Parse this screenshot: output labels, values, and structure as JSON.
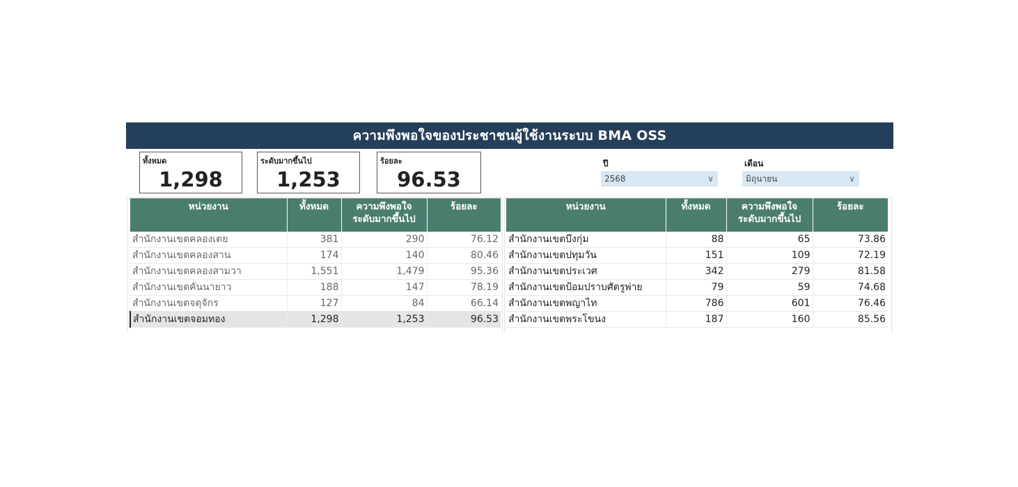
{
  "title": "ความพึงพอใจของประชาชนผู้ใช้งานระบบ BMA OSS",
  "kpis": {
    "total": {
      "label": "ทั้งหมด",
      "value": "1,298"
    },
    "high": {
      "label": "ระดับมากขึ้นไป",
      "value": "1,253"
    },
    "percent": {
      "label": "ร้อยละ",
      "value": "96.53"
    }
  },
  "filters": {
    "year": {
      "label": "ปี",
      "value": "2568"
    },
    "month": {
      "label": "เดือน",
      "value": "มิถุนายน"
    }
  },
  "table_headers": {
    "unit": "หน่วยงาน",
    "total": "ทั้งหมด",
    "high_line1": "ความพึงพอใจ",
    "high_line2": "ระดับมากขึ้นไป",
    "percent": "ร้อยละ"
  },
  "left_table": [
    {
      "unit": "สำนักงานเขตคลองเตย",
      "total": "381",
      "high": "290",
      "percent": "76.12"
    },
    {
      "unit": "สำนักงานเขตคลองสาน",
      "total": "174",
      "high": "140",
      "percent": "80.46"
    },
    {
      "unit": "สำนักงานเขตคลองสามวา",
      "total": "1,551",
      "high": "1,479",
      "percent": "95.36"
    },
    {
      "unit": "สำนักงานเขตคันนายาว",
      "total": "188",
      "high": "147",
      "percent": "78.19"
    },
    {
      "unit": "สำนักงานเขตจตุจักร",
      "total": "127",
      "high": "84",
      "percent": "66.14"
    },
    {
      "unit": "สำนักงานเขตจอมทอง",
      "total": "1,298",
      "high": "1,253",
      "percent": "96.53"
    }
  ],
  "right_table": [
    {
      "unit": "สำนักงานเขตบึงกุ่ม",
      "total": "88",
      "high": "65",
      "percent": "73.86"
    },
    {
      "unit": "สำนักงานเขตปทุมวัน",
      "total": "151",
      "high": "109",
      "percent": "72.19"
    },
    {
      "unit": "สำนักงานเขตประเวศ",
      "total": "342",
      "high": "279",
      "percent": "81.58"
    },
    {
      "unit": "สำนักงานเขตป้อมปราบศัตรูพ่าย",
      "total": "79",
      "high": "59",
      "percent": "74.68"
    },
    {
      "unit": "สำนักงานเขตพญาไท",
      "total": "786",
      "high": "601",
      "percent": "76.46"
    },
    {
      "unit": "สำนักงานเขตพระโขนง",
      "total": "187",
      "high": "160",
      "percent": "85.56"
    }
  ],
  "icons": {
    "dropdown": "chevron-down-icon"
  }
}
